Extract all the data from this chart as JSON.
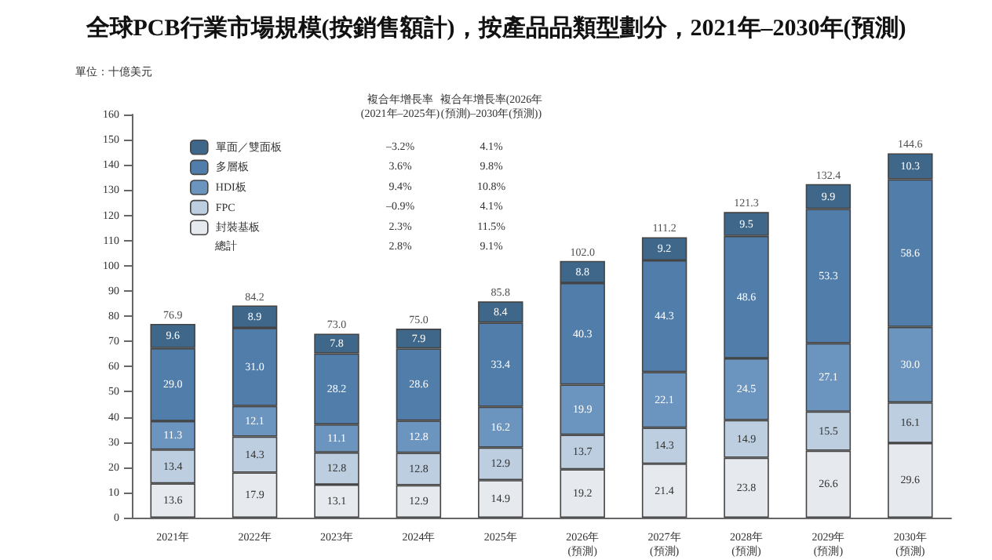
{
  "chart_data": {
    "type": "bar",
    "stacked": true,
    "title": "全球PCB行業市場規模(按銷售額計)，按產品品類型劃分，2021年–2030年(預測)",
    "categories": [
      "2021年",
      "2022年",
      "2023年",
      "2024年",
      "2025年",
      "2026年\n(預測)",
      "2027年\n(預測)",
      "2028年\n(預測)",
      "2029年\n(預測)",
      "2030年\n(預測)"
    ],
    "series": [
      {
        "name": "封裝基板",
        "color": "#e6e9ee",
        "values": [
          13.6,
          17.9,
          13.1,
          12.9,
          14.9,
          19.2,
          21.4,
          23.8,
          26.6,
          29.6
        ],
        "value_labels": [
          "13.6",
          "17.9",
          "13.1",
          "12.9",
          "14.9",
          "19.2",
          "21.4",
          "23.8",
          "26.6",
          "29.6"
        ]
      },
      {
        "name": "FPC",
        "color": "#bccedf",
        "values": [
          13.4,
          14.3,
          12.8,
          12.8,
          12.9,
          13.7,
          14.3,
          14.9,
          15.5,
          16.1
        ],
        "value_labels": [
          "13.4",
          "14.3",
          "12.8",
          "12.8",
          "12.9",
          "13.7",
          "14.3",
          "14.9",
          "15.5",
          "16.1"
        ]
      },
      {
        "name": "HDI板",
        "color": "#6b94be",
        "values": [
          11.3,
          12.1,
          11.1,
          12.8,
          16.2,
          19.9,
          22.1,
          24.5,
          27.1,
          30.0
        ],
        "value_labels": [
          "11.3",
          "12.1",
          "11.1",
          "12.8",
          "16.2",
          "19.9",
          "22.1",
          "24.5",
          "27.1",
          "30.0"
        ]
      },
      {
        "name": "多層板",
        "color": "#507da9",
        "values": [
          29.0,
          31.0,
          28.2,
          28.6,
          33.4,
          40.3,
          44.3,
          48.6,
          53.3,
          58.6
        ],
        "value_labels": [
          "29.0",
          "31.0",
          "28.2",
          "28.6",
          "33.4",
          "40.3",
          "44.3",
          "48.6",
          "53.3",
          "58.6"
        ]
      },
      {
        "name": "單面／雙面板",
        "color": "#3e6789",
        "values": [
          9.6,
          8.9,
          7.8,
          7.9,
          8.4,
          8.8,
          9.2,
          9.5,
          9.9,
          10.3
        ],
        "value_labels": [
          "9.6",
          "8.9",
          "7.8",
          "7.9",
          "8.4",
          "8.8",
          "9.2",
          "9.5",
          "9.9",
          "10.3"
        ]
      }
    ],
    "totals": [
      "76.9",
      "84.2",
      "73.0",
      "75.0",
      "85.8",
      "102.0",
      "111.2",
      "121.3",
      "132.4",
      "144.6"
    ],
    "ylim": [
      0,
      160
    ],
    "yticks": [
      0,
      10,
      20,
      30,
      40,
      50,
      60,
      70,
      80,
      90,
      100,
      110,
      120,
      130,
      140,
      150,
      160
    ],
    "grid": false,
    "legend": "top left",
    "annotations": [
      "單位：十億美元",
      "複合年增長率\n(2021年–2025年)",
      "複合年增長率(2026年\n(預測)–2030年(預測))",
      "–3.2%",
      "4.1%",
      "3.6%",
      "9.8%",
      "9.4%",
      "10.8%",
      "–0.9%",
      "4.1%",
      "2.3%",
      "11.5%",
      "總計",
      "2.8%",
      "9.1%"
    ]
  }
}
